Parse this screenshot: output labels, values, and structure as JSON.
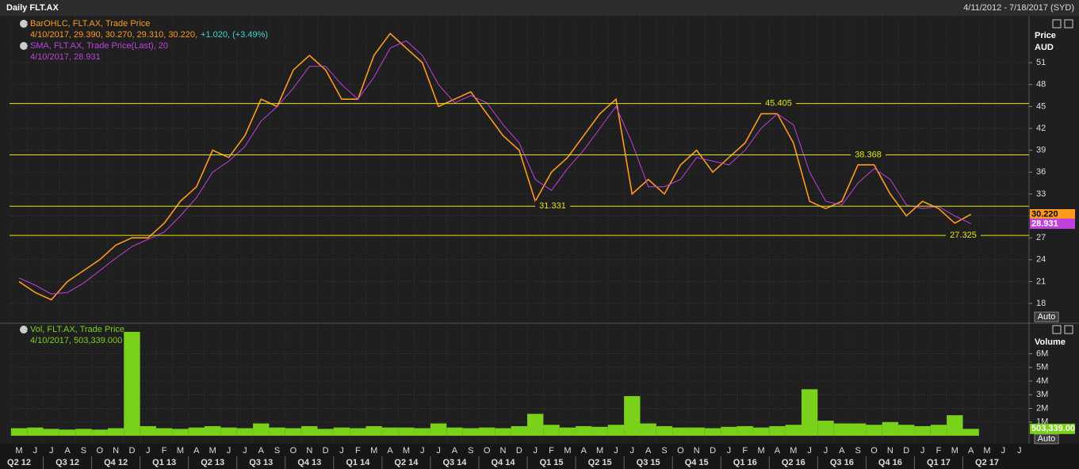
{
  "chart_data": [
    {
      "type": "line",
      "title": "Daily FLT.AX",
      "subtitle": "4/11/2012 - 7/18/2017 (SYD)",
      "categories": [
        "M",
        "J",
        "J",
        "A",
        "S",
        "O",
        "N",
        "D",
        "J",
        "F",
        "M",
        "A",
        "M",
        "J",
        "J",
        "A",
        "S",
        "O",
        "N",
        "D",
        "J",
        "F",
        "M",
        "A",
        "M",
        "J",
        "J",
        "A",
        "S",
        "O",
        "N",
        "D",
        "J",
        "F",
        "M",
        "A",
        "M",
        "J",
        "J",
        "A",
        "S",
        "O",
        "N",
        "D",
        "J",
        "F",
        "M",
        "A",
        "M",
        "J",
        "J",
        "A",
        "S",
        "O",
        "N",
        "D",
        "J",
        "F",
        "M",
        "A",
        "M",
        "J",
        "J"
      ],
      "quarters": [
        "Q2 12",
        "Q3 12",
        "Q4 12",
        "Q1 13",
        "Q2 13",
        "Q3 13",
        "Q4 13",
        "Q1 14",
        "Q2 14",
        "Q3 14",
        "Q4 14",
        "Q1 15",
        "Q2 15",
        "Q3 15",
        "Q4 15",
        "Q1 16",
        "Q2 16",
        "Q3 16",
        "Q4 16",
        "Q1 17",
        "Q2 17"
      ],
      "series": [
        {
          "name": "BarOHLC, FLT.AX, Trade Price",
          "color": "#ff9a1a",
          "details": [
            "4/10/2017, 29.390, 30.270, 29.310, 30.220,",
            "+1.020, (+3.49%)"
          ],
          "values": [
            21,
            19.5,
            18.5,
            21,
            22.5,
            24,
            26,
            27,
            27,
            29,
            32,
            34,
            39,
            38,
            41,
            46,
            45,
            50,
            52,
            50,
            46,
            46,
            52,
            55,
            53,
            51,
            45,
            46,
            47,
            44,
            41,
            39,
            32,
            36,
            38,
            41,
            44,
            46,
            33,
            35,
            33,
            37,
            39,
            36,
            38,
            40,
            44,
            44,
            40,
            32,
            31,
            32,
            37,
            37,
            33,
            30,
            32,
            31,
            29,
            30.22,
            null,
            null,
            null
          ]
        },
        {
          "name": "SMA, FLT.AX, Trade Price(Last), 20",
          "color": "#c040e0",
          "details": [
            "4/10/2017, 28.931"
          ],
          "values": [
            21.5,
            20.5,
            19.3,
            19.5,
            20.8,
            22.5,
            24.2,
            25.8,
            26.8,
            27.8,
            30,
            32.5,
            36,
            37.5,
            39.5,
            43,
            45,
            47.5,
            50.5,
            50.5,
            48,
            46,
            49,
            53,
            54,
            52,
            48,
            45.5,
            46.5,
            45.5,
            42.5,
            40,
            35,
            33.5,
            36.5,
            39,
            42,
            45,
            40,
            34,
            34,
            35,
            38,
            37.5,
            37,
            39,
            42,
            44,
            42.5,
            36,
            32,
            31.5,
            34.5,
            36.5,
            35,
            31.5,
            31,
            31.3,
            30,
            28.931,
            null,
            null,
            null
          ]
        }
      ],
      "ylabel": [
        "Price",
        "AUD"
      ],
      "ylim": [
        15.4,
        57.2
      ],
      "yticks": [
        18,
        21,
        24,
        27,
        30,
        33,
        36,
        39,
        42,
        45,
        48,
        51
      ],
      "levels": [
        45.405,
        38.368,
        31.331,
        27.325
      ],
      "level_color": "#e6e600",
      "last_labels": [
        {
          "value": 30.22,
          "label": "30.220"
        },
        {
          "value": 28.931,
          "label": "28.931"
        }
      ],
      "scale_button": "Auto",
      "grid": true
    },
    {
      "type": "bar",
      "series": [
        {
          "name": "Vol, FLT.AX, Trade Price",
          "color": "#7ad11a",
          "details": [
            "4/10/2017, 503,339.000"
          ],
          "values": [
            550000,
            600000,
            500000,
            450000,
            500000,
            450000,
            550000,
            7600000,
            700000,
            550000,
            500000,
            600000,
            700000,
            600000,
            550000,
            900000,
            600000,
            550000,
            700000,
            500000,
            600000,
            550000,
            700000,
            600000,
            600000,
            550000,
            900000,
            600000,
            550000,
            600000,
            550000,
            700000,
            1600000,
            800000,
            600000,
            700000,
            650000,
            800000,
            2900000,
            900000,
            700000,
            600000,
            600000,
            550000,
            650000,
            700000,
            600000,
            700000,
            800000,
            3400000,
            1100000,
            900000,
            900000,
            800000,
            1000000,
            800000,
            700000,
            800000,
            1500000,
            503339,
            null,
            null,
            null
          ]
        }
      ],
      "ylabel": "Volume",
      "ylim": [
        0,
        8000000
      ],
      "yticks": [
        {
          "value": 1000000,
          "label": "1M"
        },
        {
          "value": 2000000,
          "label": "2M"
        },
        {
          "value": 3000000,
          "label": "3M"
        },
        {
          "value": 4000000,
          "label": "4M"
        },
        {
          "value": 5000000,
          "label": "5M"
        },
        {
          "value": 6000000,
          "label": "6M"
        }
      ],
      "last_labels": [
        {
          "value": 503339,
          "label": "503,339.00"
        }
      ],
      "scale_button": "Auto",
      "grid": true
    }
  ]
}
